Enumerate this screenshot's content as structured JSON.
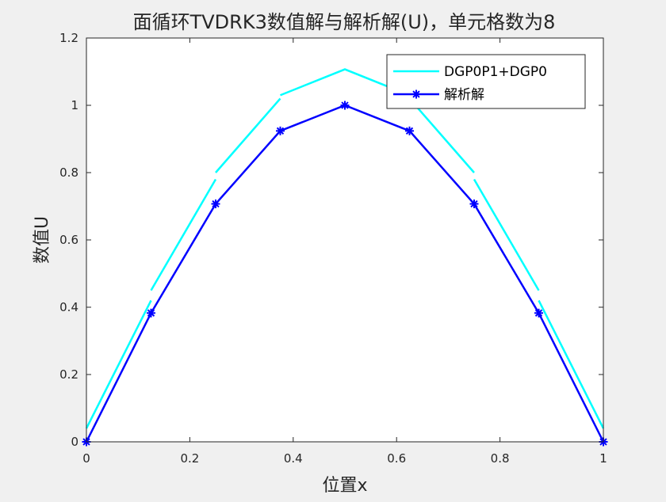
{
  "chart_data": {
    "type": "line",
    "title": "面循环TVDRK3数值解与解析解(U)，单元格数为8",
    "xlabel": "位置x",
    "ylabel": "数值U",
    "xlim": [
      0,
      1
    ],
    "ylim": [
      0,
      1.2
    ],
    "xticks": [
      0,
      0.2,
      0.4,
      0.6,
      0.8,
      1
    ],
    "xtick_labels": [
      "0",
      "0.2",
      "0.4",
      "0.6",
      "0.8",
      "1"
    ],
    "yticks": [
      0,
      0.2,
      0.4,
      0.6,
      0.8,
      1,
      1.2
    ],
    "ytick_labels": [
      "0",
      "0.2",
      "0.4",
      "0.6",
      "0.8",
      "1",
      "1.2"
    ],
    "grid": false,
    "legend_position": "top-right",
    "series": [
      {
        "name": "DGP0P1+DGP0",
        "color": "#00ffff",
        "marker": "none",
        "segments": [
          [
            [
              0,
              0.04
            ],
            [
              0.125,
              0.42
            ]
          ],
          [
            [
              0.125,
              0.45
            ],
            [
              0.25,
              0.78
            ]
          ],
          [
            [
              0.25,
              0.8
            ],
            [
              0.375,
              1.02
            ]
          ],
          [
            [
              0.375,
              1.03
            ],
            [
              0.5,
              1.107
            ],
            [
              0.625,
              1.03
            ]
          ],
          [
            [
              0.625,
              1.02
            ],
            [
              0.75,
              0.8
            ]
          ],
          [
            [
              0.75,
              0.78
            ],
            [
              0.875,
              0.45
            ]
          ],
          [
            [
              0.875,
              0.42
            ],
            [
              1,
              0.04
            ]
          ]
        ]
      },
      {
        "name": "解析解",
        "color": "#0000ff",
        "marker": "asterisk",
        "x": [
          0,
          0.125,
          0.25,
          0.375,
          0.5,
          0.625,
          0.75,
          0.875,
          1
        ],
        "y": [
          0,
          0.3827,
          0.7071,
          0.9239,
          1,
          0.9239,
          0.7071,
          0.3827,
          0
        ]
      }
    ]
  }
}
